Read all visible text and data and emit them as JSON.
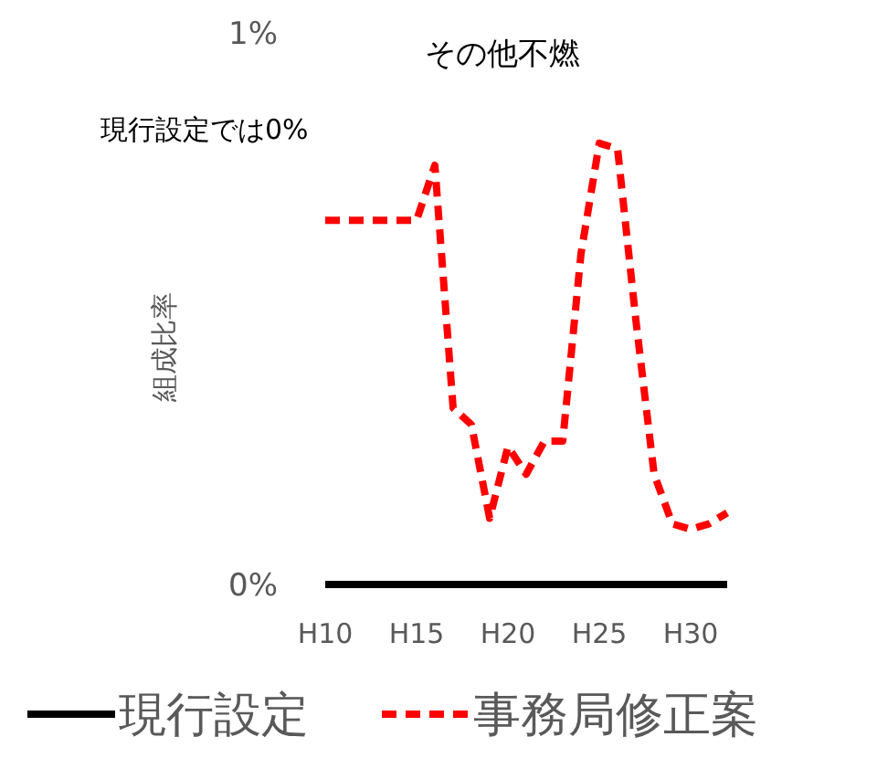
{
  "chart_data": {
    "type": "line",
    "title": "その他不燃",
    "ylabel": "組成比率",
    "annotations": [
      "現行設定では0%"
    ],
    "categories": [
      "H10",
      null,
      null,
      null,
      null,
      "H15",
      null,
      null,
      null,
      null,
      "H20",
      null,
      null,
      null,
      null,
      "H25",
      null,
      null,
      null,
      null,
      "H30",
      null,
      null
    ],
    "series": [
      {
        "name": "現行設定",
        "color": "#000000",
        "line_style": "solid",
        "values": [
          0,
          0,
          0,
          0,
          0,
          0,
          0,
          0,
          0,
          0,
          0,
          0,
          0,
          0,
          0,
          0,
          0,
          0,
          0,
          0,
          0,
          0,
          0
        ]
      },
      {
        "name": "事務局修正案",
        "color": "#ff0000",
        "line_style": "dashed",
        "values": [
          0.66,
          0.66,
          0.66,
          0.66,
          0.66,
          0.66,
          0.76,
          0.32,
          0.29,
          0.12,
          0.25,
          0.2,
          0.26,
          0.26,
          0.6,
          0.8,
          0.79,
          0.48,
          0.2,
          0.11,
          0.1,
          0.11,
          0.13
        ]
      }
    ],
    "ylim": [
      0,
      1
    ],
    "yticks": [
      {
        "value": 0,
        "label": "0%"
      },
      {
        "value": 1,
        "label": "1%"
      }
    ],
    "legend": "bottom",
    "grid": false,
    "marker": "none"
  }
}
